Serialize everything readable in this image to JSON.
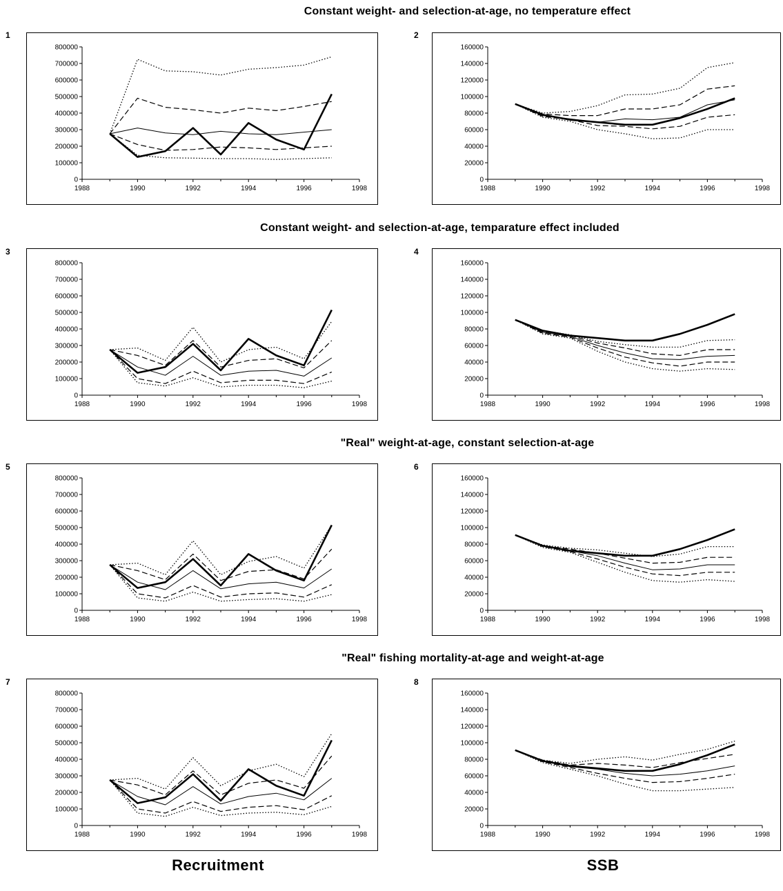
{
  "row_titles": [
    "Constant weight- and selection-at-age, no temperature effect",
    "Constant weight- and selection-at-age, temparature effect included",
    "\"Real\" weight-at-age, constant selection-at-age",
    "\"Real\" fishing mortality-at-age and weight-at-age"
  ],
  "panel_numbers": [
    "1",
    "2",
    "3",
    "4",
    "5",
    "6",
    "7",
    "8"
  ],
  "bottom_labels": {
    "left": "Recruitment",
    "right": "SSB"
  },
  "chart_data": [
    {
      "panel": "1",
      "type": "line",
      "x": [
        1989,
        1990,
        1991,
        1992,
        1993,
        1994,
        1995,
        1996,
        1997
      ],
      "xlim": [
        1988,
        1998
      ],
      "xticks": [
        1988,
        1990,
        1992,
        1994,
        1996,
        1998
      ],
      "ylim": [
        0,
        800000
      ],
      "yticks": [
        0,
        100000,
        200000,
        300000,
        400000,
        500000,
        600000,
        700000,
        800000
      ],
      "series": [
        {
          "style": "thick",
          "values": [
            275000,
            135000,
            170000,
            310000,
            150000,
            340000,
            240000,
            180000,
            515000
          ]
        },
        {
          "style": "thin",
          "values": [
            275000,
            310000,
            280000,
            270000,
            290000,
            275000,
            270000,
            285000,
            300000
          ]
        },
        {
          "style": "dash",
          "values": [
            275000,
            490000,
            435000,
            420000,
            400000,
            430000,
            415000,
            440000,
            470000
          ]
        },
        {
          "style": "dash",
          "values": [
            275000,
            210000,
            175000,
            180000,
            195000,
            190000,
            180000,
            190000,
            200000
          ]
        },
        {
          "style": "dot",
          "values": [
            275000,
            725000,
            655000,
            650000,
            630000,
            665000,
            675000,
            690000,
            740000
          ]
        },
        {
          "style": "dot",
          "values": [
            275000,
            145000,
            130000,
            128000,
            125000,
            125000,
            120000,
            125000,
            130000
          ]
        }
      ]
    },
    {
      "panel": "2",
      "type": "line",
      "x": [
        1989,
        1990,
        1991,
        1992,
        1993,
        1994,
        1995,
        1996,
        1997
      ],
      "xlim": [
        1988,
        1998
      ],
      "xticks": [
        1988,
        1990,
        1992,
        1994,
        1996,
        1998
      ],
      "ylim": [
        0,
        160000
      ],
      "yticks": [
        0,
        20000,
        40000,
        60000,
        80000,
        100000,
        120000,
        140000,
        160000
      ],
      "series": [
        {
          "style": "thick",
          "values": [
            91000,
            78000,
            72000,
            69000,
            66000,
            66000,
            74000,
            85000,
            98000
          ]
        },
        {
          "style": "thin",
          "values": [
            91000,
            77000,
            73000,
            69000,
            73000,
            72000,
            75000,
            90000,
            96000
          ]
        },
        {
          "style": "dash",
          "values": [
            91000,
            79000,
            77000,
            77000,
            85000,
            85000,
            90000,
            109000,
            113000
          ]
        },
        {
          "style": "dash",
          "values": [
            91000,
            76000,
            72000,
            65000,
            64000,
            61000,
            64000,
            75000,
            78000
          ]
        },
        {
          "style": "dot",
          "values": [
            91000,
            80000,
            82000,
            89000,
            102000,
            103000,
            110000,
            135000,
            141000
          ]
        },
        {
          "style": "dot",
          "values": [
            91000,
            75000,
            70000,
            60000,
            55000,
            49000,
            50000,
            60000,
            60000
          ]
        }
      ]
    },
    {
      "panel": "3",
      "type": "line",
      "x": [
        1989,
        1990,
        1991,
        1992,
        1993,
        1994,
        1995,
        1996,
        1997
      ],
      "xlim": [
        1988,
        1998
      ],
      "xticks": [
        1988,
        1990,
        1992,
        1994,
        1996,
        1998
      ],
      "ylim": [
        0,
        800000
      ],
      "yticks": [
        0,
        100000,
        200000,
        300000,
        400000,
        500000,
        600000,
        700000,
        800000
      ],
      "series": [
        {
          "style": "thick",
          "values": [
            275000,
            135000,
            170000,
            310000,
            150000,
            340000,
            240000,
            180000,
            515000
          ]
        },
        {
          "style": "thin",
          "values": [
            275000,
            170000,
            120000,
            235000,
            120000,
            145000,
            150000,
            115000,
            225000
          ]
        },
        {
          "style": "dash",
          "values": [
            275000,
            240000,
            180000,
            330000,
            170000,
            210000,
            220000,
            165000,
            330000
          ]
        },
        {
          "style": "dash",
          "values": [
            275000,
            100000,
            70000,
            145000,
            75000,
            90000,
            90000,
            70000,
            140000
          ]
        },
        {
          "style": "dot",
          "values": [
            275000,
            285000,
            210000,
            410000,
            200000,
            275000,
            290000,
            220000,
            445000
          ]
        },
        {
          "style": "dot",
          "values": [
            275000,
            75000,
            55000,
            105000,
            50000,
            60000,
            60000,
            45000,
            85000
          ]
        }
      ]
    },
    {
      "panel": "4",
      "type": "line",
      "x": [
        1989,
        1990,
        1991,
        1992,
        1993,
        1994,
        1995,
        1996,
        1997
      ],
      "xlim": [
        1988,
        1998
      ],
      "xticks": [
        1988,
        1990,
        1992,
        1994,
        1996,
        1998
      ],
      "ylim": [
        0,
        160000
      ],
      "yticks": [
        0,
        20000,
        40000,
        60000,
        80000,
        100000,
        120000,
        140000,
        160000
      ],
      "series": [
        {
          "style": "thick",
          "values": [
            91000,
            78000,
            72000,
            69000,
            66000,
            66000,
            74000,
            85000,
            98000
          ]
        },
        {
          "style": "thin",
          "values": [
            91000,
            76000,
            71000,
            60000,
            51000,
            44000,
            43000,
            47000,
            48000
          ]
        },
        {
          "style": "dash",
          "values": [
            91000,
            77000,
            72000,
            63000,
            57000,
            50000,
            48000,
            55000,
            55000
          ]
        },
        {
          "style": "dash",
          "values": [
            91000,
            75000,
            70000,
            57000,
            46000,
            39000,
            35000,
            40000,
            40000
          ]
        },
        {
          "style": "dot",
          "values": [
            91000,
            78000,
            73000,
            65000,
            61000,
            58000,
            58000,
            66000,
            67000
          ]
        },
        {
          "style": "dot",
          "values": [
            91000,
            74000,
            69000,
            53000,
            40000,
            32000,
            29000,
            32000,
            31000
          ]
        }
      ]
    },
    {
      "panel": "5",
      "type": "line",
      "x": [
        1989,
        1990,
        1991,
        1992,
        1993,
        1994,
        1995,
        1996,
        1997
      ],
      "xlim": [
        1988,
        1998
      ],
      "xticks": [
        1988,
        1990,
        1992,
        1994,
        1996,
        1998
      ],
      "ylim": [
        0,
        800000
      ],
      "yticks": [
        0,
        100000,
        200000,
        300000,
        400000,
        500000,
        600000,
        700000,
        800000
      ],
      "series": [
        {
          "style": "thick",
          "values": [
            275000,
            135000,
            170000,
            310000,
            150000,
            340000,
            240000,
            180000,
            515000
          ]
        },
        {
          "style": "thin",
          "values": [
            275000,
            170000,
            125000,
            240000,
            130000,
            160000,
            170000,
            135000,
            250000
          ]
        },
        {
          "style": "dash",
          "values": [
            275000,
            240000,
            185000,
            340000,
            180000,
            235000,
            245000,
            190000,
            370000
          ]
        },
        {
          "style": "dash",
          "values": [
            275000,
            100000,
            75000,
            150000,
            80000,
            100000,
            105000,
            80000,
            155000
          ]
        },
        {
          "style": "dot",
          "values": [
            275000,
            285000,
            215000,
            420000,
            215000,
            295000,
            325000,
            255000,
            515000
          ]
        },
        {
          "style": "dot",
          "values": [
            275000,
            75000,
            55000,
            110000,
            55000,
            65000,
            70000,
            55000,
            95000
          ]
        }
      ]
    },
    {
      "panel": "6",
      "type": "line",
      "x": [
        1989,
        1990,
        1991,
        1992,
        1993,
        1994,
        1995,
        1996,
        1997
      ],
      "xlim": [
        1988,
        1998
      ],
      "xticks": [
        1988,
        1990,
        1992,
        1994,
        1996,
        1998
      ],
      "ylim": [
        0,
        160000
      ],
      "yticks": [
        0,
        20000,
        40000,
        60000,
        80000,
        100000,
        120000,
        140000,
        160000
      ],
      "series": [
        {
          "style": "thick",
          "values": [
            91000,
            78000,
            72000,
            69000,
            66000,
            66000,
            74000,
            85000,
            98000
          ]
        },
        {
          "style": "thin",
          "values": [
            91000,
            78000,
            72000,
            66000,
            57000,
            49000,
            50000,
            55000,
            55000
          ]
        },
        {
          "style": "dash",
          "values": [
            91000,
            78000,
            74000,
            69000,
            63000,
            57000,
            58000,
            64000,
            64000
          ]
        },
        {
          "style": "dash",
          "values": [
            91000,
            77000,
            71000,
            62000,
            52000,
            44000,
            42000,
            46000,
            46000
          ]
        },
        {
          "style": "dot",
          "values": [
            91000,
            79000,
            75000,
            73000,
            69000,
            65000,
            68000,
            77000,
            77000
          ]
        },
        {
          "style": "dot",
          "values": [
            91000,
            76000,
            70000,
            58000,
            46000,
            36000,
            34000,
            37000,
            35000
          ]
        }
      ]
    },
    {
      "panel": "7",
      "type": "line",
      "x": [
        1989,
        1990,
        1991,
        1992,
        1993,
        1994,
        1995,
        1996,
        1997
      ],
      "xlim": [
        1988,
        1998
      ],
      "xticks": [
        1988,
        1990,
        1992,
        1994,
        1996,
        1998
      ],
      "ylim": [
        0,
        800000
      ],
      "yticks": [
        0,
        100000,
        200000,
        300000,
        400000,
        500000,
        600000,
        700000,
        800000
      ],
      "series": [
        {
          "style": "thick",
          "values": [
            275000,
            135000,
            170000,
            310000,
            150000,
            340000,
            240000,
            180000,
            515000
          ]
        },
        {
          "style": "thin",
          "values": [
            275000,
            175000,
            125000,
            235000,
            130000,
            175000,
            195000,
            155000,
            285000
          ]
        },
        {
          "style": "dash",
          "values": [
            275000,
            245000,
            185000,
            330000,
            185000,
            255000,
            275000,
            225000,
            420000
          ]
        },
        {
          "style": "dash",
          "values": [
            275000,
            100000,
            75000,
            145000,
            85000,
            110000,
            120000,
            95000,
            180000
          ]
        },
        {
          "style": "dot",
          "values": [
            275000,
            285000,
            220000,
            410000,
            240000,
            330000,
            370000,
            295000,
            555000
          ]
        },
        {
          "style": "dot",
          "values": [
            275000,
            75000,
            55000,
            110000,
            60000,
            75000,
            80000,
            65000,
            115000
          ]
        }
      ]
    },
    {
      "panel": "8",
      "type": "line",
      "x": [
        1989,
        1990,
        1991,
        1992,
        1993,
        1994,
        1995,
        1996,
        1997
      ],
      "xlim": [
        1988,
        1998
      ],
      "xticks": [
        1988,
        1990,
        1992,
        1994,
        1996,
        1998
      ],
      "ylim": [
        0,
        160000
      ],
      "yticks": [
        0,
        20000,
        40000,
        60000,
        80000,
        100000,
        120000,
        140000,
        160000
      ],
      "series": [
        {
          "style": "thick",
          "values": [
            91000,
            78000,
            72000,
            69000,
            66000,
            66000,
            74000,
            85000,
            98000
          ]
        },
        {
          "style": "thin",
          "values": [
            91000,
            78000,
            71000,
            68000,
            63000,
            60000,
            62000,
            66000,
            72000
          ]
        },
        {
          "style": "dash",
          "values": [
            91000,
            79000,
            73000,
            75000,
            73000,
            70000,
            76000,
            81000,
            86000
          ]
        },
        {
          "style": "dash",
          "values": [
            91000,
            77000,
            70000,
            63000,
            57000,
            52000,
            53000,
            57000,
            62000
          ]
        },
        {
          "style": "dot",
          "values": [
            91000,
            79000,
            75000,
            80000,
            83000,
            79000,
            86000,
            92000,
            102000
          ]
        },
        {
          "style": "dot",
          "values": [
            91000,
            76000,
            68000,
            60000,
            50000,
            42000,
            42000,
            44000,
            46000
          ]
        }
      ]
    }
  ]
}
